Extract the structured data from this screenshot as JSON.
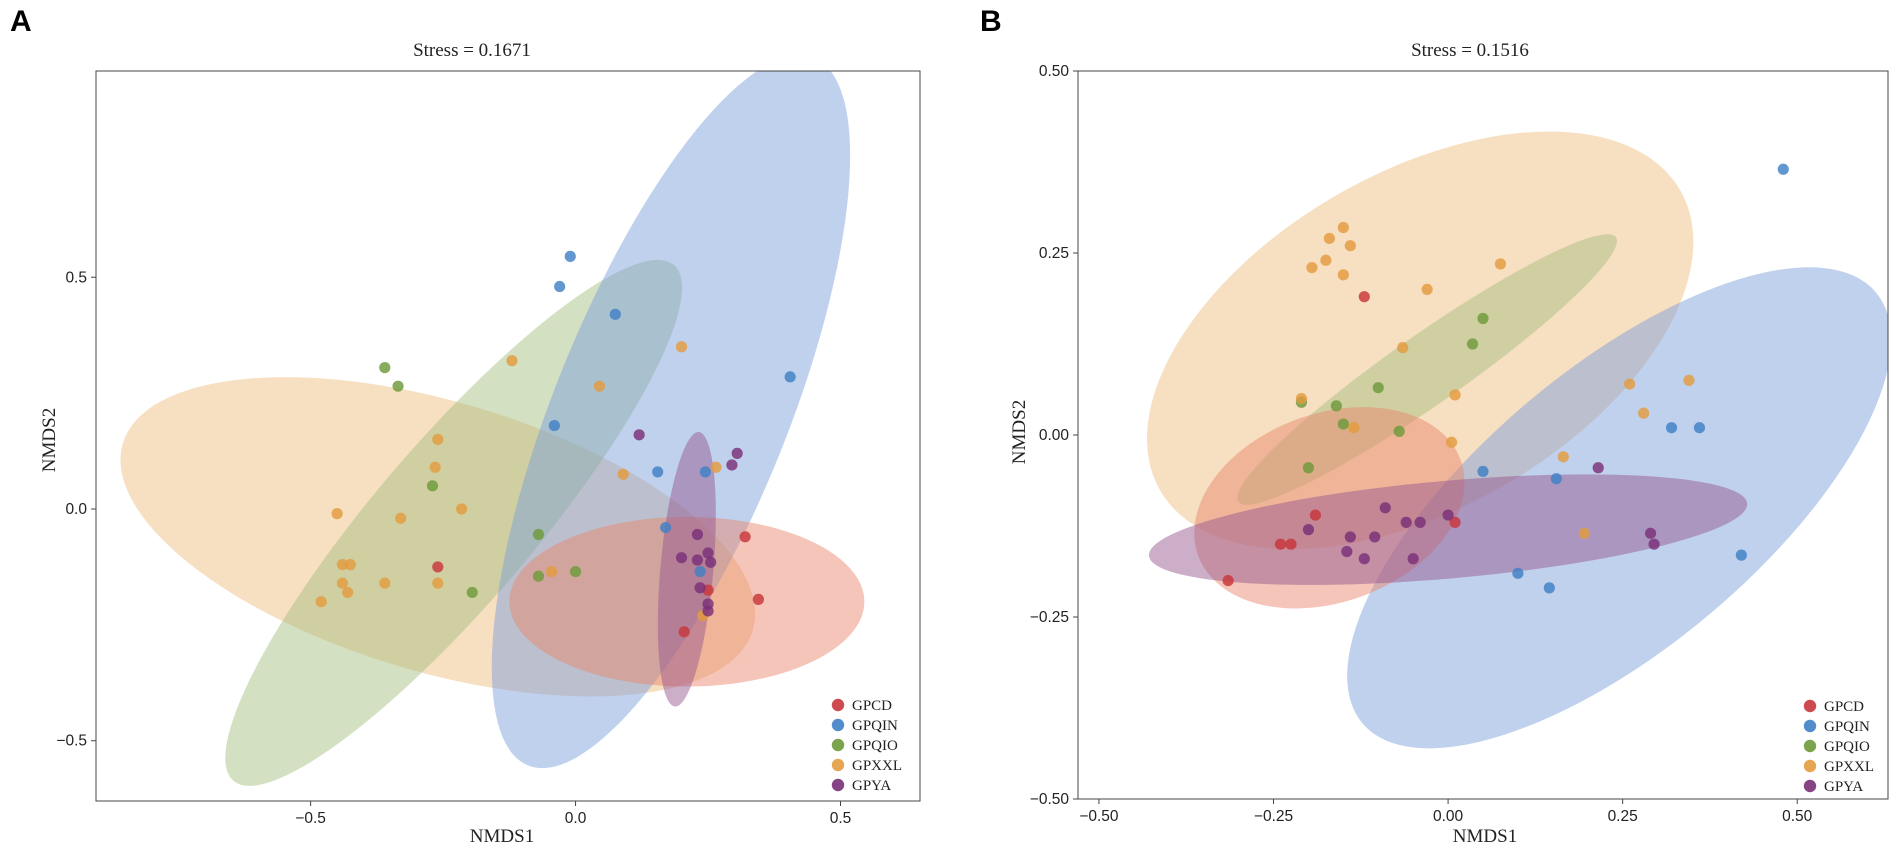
{
  "figure": {
    "panel_a_label": "A",
    "panel_b_label": "B"
  },
  "colors": {
    "GPCD": "#c8363b",
    "GPQIN": "#3f80c4",
    "GPQIO": "#6e9a3a",
    "GPXXL": "#e39b3e",
    "GPYA": "#7a3078",
    "ellipse": {
      "GPCD": "#e8866a",
      "GPQIN": "#7c9edb",
      "GPQIO": "#a6bf80",
      "GPXXL": "#eebd7e",
      "GPYA": "#94558f"
    }
  },
  "chart_data": [
    {
      "type": "scatter",
      "panel": "A",
      "title": "Stress = 0.1671",
      "xlabel": "NMDS1",
      "ylabel": "NMDS2",
      "xlim": [
        -0.905,
        0.65
      ],
      "ylim": [
        -0.63,
        0.945
      ],
      "xticks": [
        -0.5,
        0.0,
        0.5
      ],
      "xtick_labels": [
        "−0.5",
        "0.0",
        "0.5"
      ],
      "yticks": [
        -0.5,
        0.0,
        0.5
      ],
      "ytick_labels": [
        "−0.5",
        "0.0",
        "0.5"
      ],
      "legend": [
        "GPCD",
        "GPQIN",
        "GPQIO",
        "GPXXL",
        "GPYA"
      ],
      "legend_position": "bottom-right",
      "grid": false,
      "ellipses": [
        {
          "group": "GPXXL",
          "cx": -0.26,
          "cy": -0.06,
          "rx": 0.62,
          "ry": 0.255,
          "angle_deg": -16.5
        },
        {
          "group": "GPQIO",
          "cx": -0.23,
          "cy": -0.03,
          "rx": 0.64,
          "ry": 0.15,
          "angle_deg": 49.5
        },
        {
          "group": "GPQIN",
          "cx": 0.18,
          "cy": 0.21,
          "rx": 0.72,
          "ry": 0.22,
          "angle_deg": 68
        },
        {
          "group": "GPCD",
          "cx": 0.21,
          "cy": -0.2,
          "rx": 0.335,
          "ry": 0.16,
          "angle_deg": 0
        },
        {
          "group": "GPYA",
          "cx": 0.21,
          "cy": -0.13,
          "rx": 0.05,
          "ry": 0.26,
          "angle_deg": -5
        }
      ],
      "series": [
        {
          "name": "GPCD",
          "points": [
            [
              -0.26,
              -0.125
            ],
            [
              0.32,
              -0.06
            ],
            [
              0.345,
              -0.195
            ],
            [
              0.205,
              -0.265
            ],
            [
              0.25,
              -0.175
            ]
          ]
        },
        {
          "name": "GPQIN",
          "points": [
            [
              -0.01,
              0.545
            ],
            [
              -0.03,
              0.48
            ],
            [
              0.075,
              0.42
            ],
            [
              0.405,
              0.285
            ],
            [
              -0.04,
              0.18
            ],
            [
              0.155,
              0.08
            ],
            [
              0.245,
              0.08
            ],
            [
              0.17,
              -0.04
            ],
            [
              0.235,
              -0.135
            ]
          ]
        },
        {
          "name": "GPQIO",
          "points": [
            [
              -0.36,
              0.305
            ],
            [
              -0.335,
              0.265
            ],
            [
              -0.27,
              0.05
            ],
            [
              -0.07,
              -0.055
            ],
            [
              -0.07,
              -0.145
            ],
            [
              0.0,
              -0.135
            ],
            [
              -0.195,
              -0.18
            ]
          ]
        },
        {
          "name": "GPXXL",
          "points": [
            [
              -0.12,
              0.32
            ],
            [
              0.2,
              0.35
            ],
            [
              0.045,
              0.265
            ],
            [
              -0.26,
              0.15
            ],
            [
              -0.265,
              0.09
            ],
            [
              -0.45,
              -0.01
            ],
            [
              -0.33,
              -0.02
            ],
            [
              -0.215,
              0.0
            ],
            [
              -0.44,
              -0.12
            ],
            [
              -0.425,
              -0.12
            ],
            [
              -0.44,
              -0.16
            ],
            [
              -0.36,
              -0.16
            ],
            [
              -0.26,
              -0.16
            ],
            [
              -0.48,
              -0.2
            ],
            [
              -0.43,
              -0.18
            ],
            [
              -0.045,
              -0.135
            ],
            [
              0.09,
              0.075
            ],
            [
              0.265,
              0.09
            ],
            [
              0.24,
              -0.23
            ]
          ]
        },
        {
          "name": "GPYA",
          "points": [
            [
              0.12,
              0.16
            ],
            [
              0.305,
              0.12
            ],
            [
              0.295,
              0.095
            ],
            [
              0.23,
              -0.055
            ],
            [
              0.25,
              -0.095
            ],
            [
              0.255,
              -0.115
            ],
            [
              0.2,
              -0.105
            ],
            [
              0.23,
              -0.11
            ],
            [
              0.235,
              -0.17
            ],
            [
              0.25,
              -0.205
            ],
            [
              0.25,
              -0.22
            ]
          ]
        }
      ]
    },
    {
      "type": "scatter",
      "panel": "B",
      "title": "Stress = 0.1516",
      "xlabel": "NMDS1",
      "ylabel": "NMDS2",
      "xlim": [
        -0.53,
        0.63
      ],
      "ylim": [
        -0.5,
        0.5
      ],
      "xticks": [
        -0.5,
        -0.25,
        0.0,
        0.25,
        0.5
      ],
      "xtick_labels": [
        "−0.50",
        "−0.25",
        "0.00",
        "0.25",
        "0.50"
      ],
      "yticks": [
        -0.5,
        -0.25,
        0.0,
        0.25,
        0.5
      ],
      "ytick_labels": [
        "−0.50",
        "−0.25",
        "0.00",
        "0.25",
        "0.50"
      ],
      "legend": [
        "GPCD",
        "GPQIN",
        "GPQIO",
        "GPXXL",
        "GPYA"
      ],
      "legend_position": "bottom-right",
      "grid": false,
      "ellipses": [
        {
          "group": "GPXXL",
          "cx": -0.04,
          "cy": 0.13,
          "rx": 0.43,
          "ry": 0.24,
          "angle_deg": 30
        },
        {
          "group": "GPQIN",
          "cx": 0.245,
          "cy": -0.1,
          "rx": 0.48,
          "ry": 0.2,
          "angle_deg": 40
        },
        {
          "group": "GPQIO",
          "cx": -0.03,
          "cy": 0.09,
          "rx": 0.33,
          "ry": 0.05,
          "angle_deg": 35
        },
        {
          "group": "GPCD",
          "cx": -0.17,
          "cy": -0.1,
          "rx": 0.2,
          "ry": 0.135,
          "angle_deg": 20
        },
        {
          "group": "GPYA",
          "cx": 0.0,
          "cy": -0.13,
          "rx": 0.43,
          "ry": 0.07,
          "angle_deg": 5
        }
      ],
      "series": [
        {
          "name": "GPCD",
          "points": [
            [
              -0.12,
              0.19
            ],
            [
              -0.19,
              -0.11
            ],
            [
              -0.24,
              -0.15
            ],
            [
              -0.225,
              -0.15
            ],
            [
              -0.315,
              -0.2
            ],
            [
              0.01,
              -0.12
            ]
          ]
        },
        {
          "name": "GPQIN",
          "points": [
            [
              0.48,
              0.365
            ],
            [
              0.32,
              0.01
            ],
            [
              0.36,
              0.01
            ],
            [
              0.05,
              -0.05
            ],
            [
              0.155,
              -0.06
            ],
            [
              0.42,
              -0.165
            ],
            [
              0.1,
              -0.19
            ],
            [
              0.145,
              -0.21
            ]
          ]
        },
        {
          "name": "GPQIO",
          "points": [
            [
              0.05,
              0.16
            ],
            [
              0.035,
              0.125
            ],
            [
              -0.1,
              0.065
            ],
            [
              -0.21,
              0.045
            ],
            [
              -0.16,
              0.04
            ],
            [
              -0.15,
              0.015
            ],
            [
              -0.07,
              0.005
            ],
            [
              -0.2,
              -0.045
            ]
          ]
        },
        {
          "name": "GPXXL",
          "points": [
            [
              -0.15,
              0.285
            ],
            [
              -0.17,
              0.27
            ],
            [
              -0.14,
              0.26
            ],
            [
              -0.175,
              0.24
            ],
            [
              -0.15,
              0.22
            ],
            [
              -0.195,
              0.23
            ],
            [
              0.075,
              0.235
            ],
            [
              -0.03,
              0.2
            ],
            [
              -0.065,
              0.12
            ],
            [
              0.01,
              0.055
            ],
            [
              -0.21,
              0.05
            ],
            [
              -0.135,
              0.01
            ],
            [
              0.345,
              0.075
            ],
            [
              0.26,
              0.07
            ],
            [
              0.28,
              0.03
            ],
            [
              0.005,
              -0.01
            ],
            [
              0.165,
              -0.03
            ],
            [
              0.195,
              -0.135
            ]
          ]
        },
        {
          "name": "GPYA",
          "points": [
            [
              0.215,
              -0.045
            ],
            [
              -0.09,
              -0.1
            ],
            [
              -0.105,
              -0.14
            ],
            [
              -0.14,
              -0.14
            ],
            [
              -0.2,
              -0.13
            ],
            [
              -0.06,
              -0.12
            ],
            [
              -0.04,
              -0.12
            ],
            [
              -0.145,
              -0.16
            ],
            [
              -0.12,
              -0.17
            ],
            [
              -0.05,
              -0.17
            ],
            [
              0.0,
              -0.11
            ],
            [
              0.29,
              -0.135
            ],
            [
              0.295,
              -0.15
            ]
          ]
        }
      ]
    }
  ]
}
